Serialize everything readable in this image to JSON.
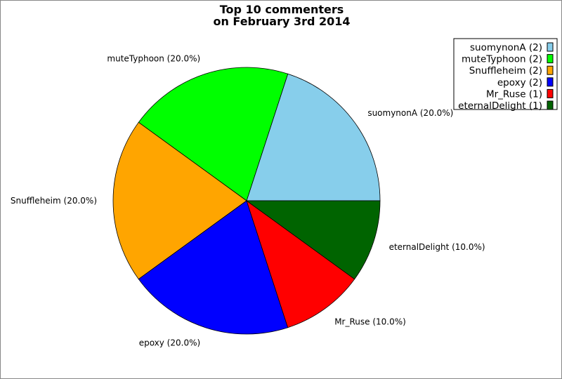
{
  "chart_data": {
    "type": "pie",
    "title": [
      "Top 10 commenters",
      "on February 3rd 2014"
    ],
    "start_angle_deg": 0,
    "direction": "counterclockwise",
    "legend_placement": "top-right",
    "slices": [
      {
        "name": "suomynonA",
        "value": 2,
        "percent": 20.0,
        "color": "#87ceeb",
        "label": "suomynonA (20.0%)",
        "legend": "suomynonA (2)"
      },
      {
        "name": "muteTyphoon",
        "value": 2,
        "percent": 20.0,
        "color": "#00ff00",
        "label": "muteTyphoon (20.0%)",
        "legend": "muteTyphoon (2)"
      },
      {
        "name": "Snuffleheim",
        "value": 2,
        "percent": 20.0,
        "color": "#ffa500",
        "label": "Snuffleheim (20.0%)",
        "legend": "Snuffleheim (2)"
      },
      {
        "name": "epoxy",
        "value": 2,
        "percent": 20.0,
        "color": "#0000ff",
        "label": "epoxy (20.0%)",
        "legend": "epoxy (2)"
      },
      {
        "name": "Mr_Ruse",
        "value": 1,
        "percent": 10.0,
        "color": "#ff0000",
        "label": "Mr_Ruse (10.0%)",
        "legend": "Mr_Ruse (1)"
      },
      {
        "name": "eternalDelight",
        "value": 1,
        "percent": 10.0,
        "color": "#006400",
        "label": "eternalDelight (10.0%)",
        "legend": "eternalDelight (1)"
      }
    ]
  }
}
